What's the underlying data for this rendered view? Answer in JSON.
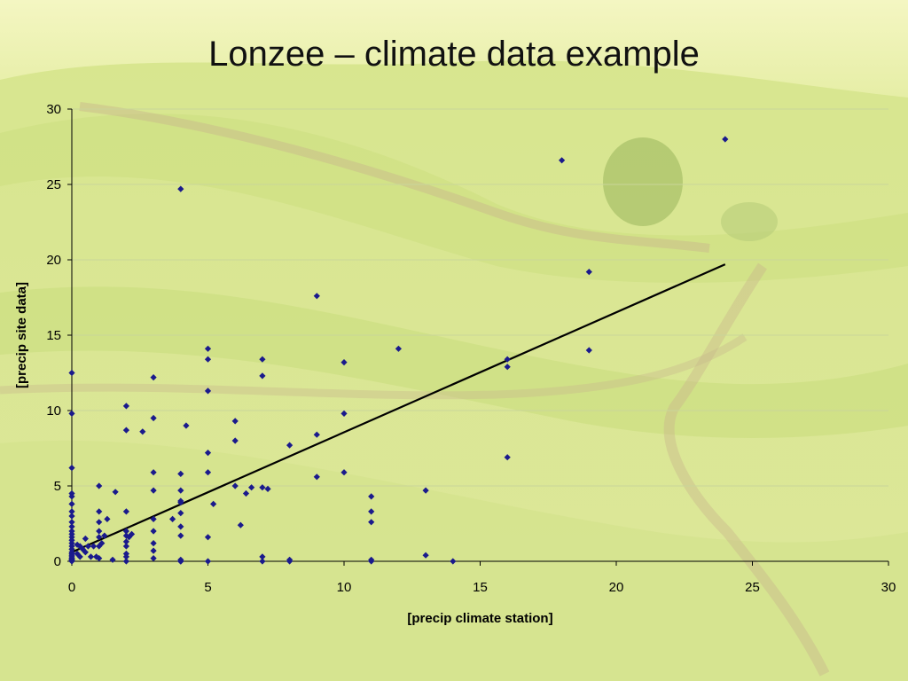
{
  "slide": {
    "title": "Lonzee – climate data example"
  },
  "colors": {
    "point": "#1a1a8c",
    "trendline": "#000000",
    "gridline": "#c9d59a",
    "axis": "#000000"
  },
  "chart_data": {
    "type": "scatter",
    "title": "",
    "xlabel": "[precip climate station]",
    "ylabel": "[precip site data]",
    "xlim": [
      0,
      30
    ],
    "ylim": [
      0,
      30
    ],
    "xticks": [
      0,
      5,
      10,
      15,
      20,
      25,
      30
    ],
    "yticks": [
      0,
      5,
      10,
      15,
      20,
      25,
      30
    ],
    "grid": "horizontal",
    "legend": "none",
    "trendline": {
      "x": [
        0,
        24
      ],
      "y": [
        0.6,
        19.7
      ]
    },
    "x": [
      0,
      0,
      0,
      0,
      0,
      0,
      0,
      0,
      0,
      0,
      0,
      0,
      0,
      0,
      0,
      0,
      0,
      0,
      0,
      0,
      0,
      0,
      0,
      0,
      0,
      0,
      0.2,
      0.2,
      0.3,
      0.3,
      0.4,
      0.5,
      0.5,
      0.6,
      0.7,
      0.8,
      0.9,
      1,
      1,
      1,
      1,
      1,
      1,
      1,
      1.1,
      1.2,
      1.3,
      1.5,
      1.6,
      2,
      2,
      2,
      2,
      2,
      2,
      2,
      2,
      2,
      2,
      2.1,
      2.2,
      2.6,
      3,
      3,
      3,
      3,
      3,
      3,
      3,
      3,
      3,
      3.7,
      4,
      4,
      4,
      4,
      4,
      4,
      4,
      4,
      4,
      4,
      4,
      4,
      4.2,
      5,
      5,
      5,
      5,
      5,
      5,
      5,
      5.2,
      6,
      6,
      6,
      6.2,
      6.4,
      6.6,
      7,
      7,
      7,
      7,
      7,
      7.2,
      8,
      8,
      8,
      9,
      9,
      9,
      10,
      10,
      10,
      11,
      11,
      11,
      11,
      11,
      12,
      13,
      13,
      14,
      16,
      16,
      16,
      18,
      19,
      19,
      24
    ],
    "y": [
      12.5,
      9.8,
      6.2,
      4.5,
      4.3,
      3.8,
      3.3,
      3,
      2.6,
      2.3,
      2,
      1.8,
      1.6,
      1.4,
      1.2,
      1,
      0.8,
      0.6,
      0.5,
      0.4,
      0.3,
      0.2,
      0.15,
      0.1,
      0.05,
      0,
      1.1,
      0.5,
      1.0,
      0.3,
      0.8,
      0.6,
      1.5,
      1.0,
      0.3,
      1.0,
      0.3,
      5.0,
      3.3,
      2.6,
      2.0,
      1.6,
      1.0,
      0.2,
      1.2,
      1.7,
      2.8,
      0.1,
      4.6,
      10.3,
      8.7,
      3.3,
      2.0,
      1.7,
      1.3,
      1.0,
      0.5,
      0.3,
      0,
      1.6,
      1.8,
      8.6,
      12.2,
      9.5,
      5.9,
      4.7,
      2.8,
      2.0,
      1.2,
      0.7,
      0.2,
      2.8,
      24.7,
      5.8,
      4.7,
      4.0,
      3.9,
      3.2,
      2.3,
      1.7,
      0.1,
      0,
      0,
      0,
      9.0,
      14.1,
      13.4,
      11.3,
      7.2,
      5.9,
      1.6,
      0,
      3.8,
      9.3,
      8.0,
      5.0,
      2.4,
      4.5,
      4.9,
      13.4,
      12.3,
      4.9,
      0.3,
      0,
      4.8,
      7.7,
      0.1,
      0,
      17.6,
      8.4,
      5.6,
      13.2,
      9.8,
      5.9,
      4.3,
      3.3,
      2.6,
      0.1,
      0,
      14.1,
      4.7,
      0.4,
      0,
      13.4,
      12.9,
      6.9,
      26.6,
      19.2,
      14.0,
      28.0
    ]
  }
}
